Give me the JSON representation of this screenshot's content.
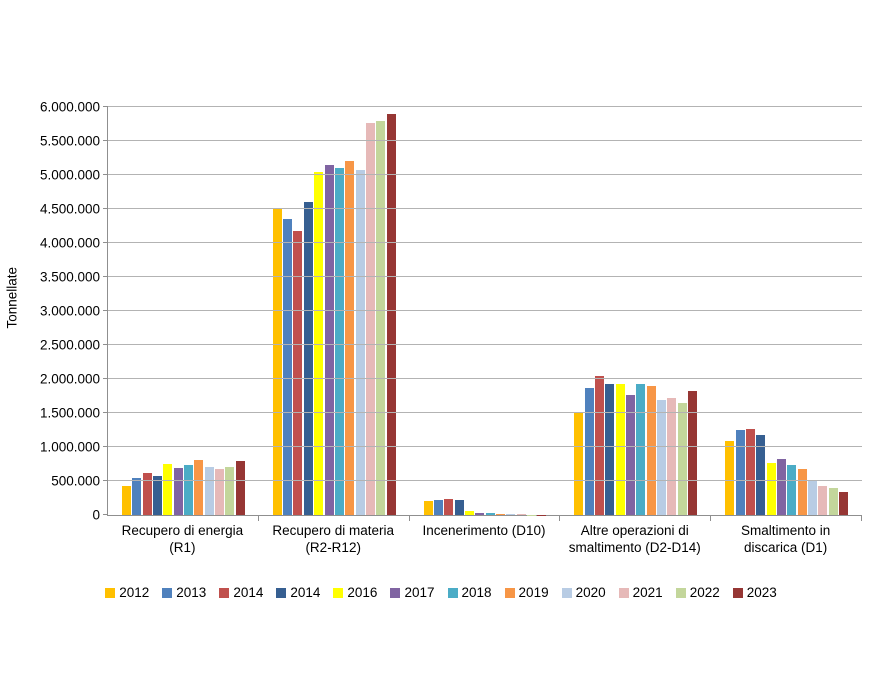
{
  "chart_data": {
    "type": "bar",
    "title": "",
    "xlabel": "",
    "ylabel": "Tonnellate",
    "ylim": [
      0,
      6000000
    ],
    "grid": "horizontal",
    "legend_position": "bottom",
    "y_ticks": [
      {
        "value": 0,
        "label": "0"
      },
      {
        "value": 500000,
        "label": "500.000"
      },
      {
        "value": 1000000,
        "label": "1.000.000"
      },
      {
        "value": 1500000,
        "label": "1.500.000"
      },
      {
        "value": 2000000,
        "label": "2.000.000"
      },
      {
        "value": 2500000,
        "label": "2.500.000"
      },
      {
        "value": 3000000,
        "label": "3.000.000"
      },
      {
        "value": 3500000,
        "label": "3.500.000"
      },
      {
        "value": 4000000,
        "label": "4.000.000"
      },
      {
        "value": 4500000,
        "label": "4.500.000"
      },
      {
        "value": 5000000,
        "label": "5.000.000"
      },
      {
        "value": 5500000,
        "label": "5.500.000"
      },
      {
        "value": 6000000,
        "label": "6.000.000"
      }
    ],
    "categories": [
      "Recupero di energia\n(R1)",
      "Recupero di materia\n(R2-R12)",
      "Incenerimento (D10)",
      "Altre operazioni di\nsmaltimento (D2-D14)",
      "Smaltimento in\ndiscarica (D1)"
    ],
    "series": [
      {
        "name": "2012",
        "color": "#FFC000",
        "values": [
          420000,
          4500000,
          210000,
          1500000,
          1090000
        ]
      },
      {
        "name": "2013",
        "color": "#4F81BD",
        "values": [
          550000,
          4360000,
          220000,
          1870000,
          1250000
        ]
      },
      {
        "name": "2014",
        "color": "#C0504D",
        "values": [
          620000,
          4170000,
          230000,
          2050000,
          1260000
        ]
      },
      {
        "name": "2014",
        "color": "#365F91",
        "values": [
          570000,
          4600000,
          220000,
          1920000,
          1180000
        ]
      },
      {
        "name": "2016",
        "color": "#FFFF00",
        "values": [
          750000,
          5050000,
          55000,
          1920000,
          770000
        ]
      },
      {
        "name": "2017",
        "color": "#8064A2",
        "values": [
          690000,
          5140000,
          30000,
          1760000,
          820000
        ]
      },
      {
        "name": "2018",
        "color": "#4BACC6",
        "values": [
          740000,
          5110000,
          25000,
          1930000,
          740000
        ]
      },
      {
        "name": "2019",
        "color": "#F79646",
        "values": [
          810000,
          5210000,
          20000,
          1900000,
          670000
        ]
      },
      {
        "name": "2020",
        "color": "#B8CCE4",
        "values": [
          710000,
          5070000,
          8000,
          1690000,
          520000
        ]
      },
      {
        "name": "2021",
        "color": "#E6B9B8",
        "values": [
          680000,
          5770000,
          8000,
          1720000,
          430000
        ]
      },
      {
        "name": "2022",
        "color": "#C3D69B",
        "values": [
          700000,
          5800000,
          5000,
          1650000,
          390000
        ]
      },
      {
        "name": "2023",
        "color": "#963634",
        "values": [
          800000,
          5890000,
          5000,
          1820000,
          340000
        ]
      }
    ],
    "axis_color": "#8f8f8f",
    "gridline_color": "#b3b3b3"
  }
}
